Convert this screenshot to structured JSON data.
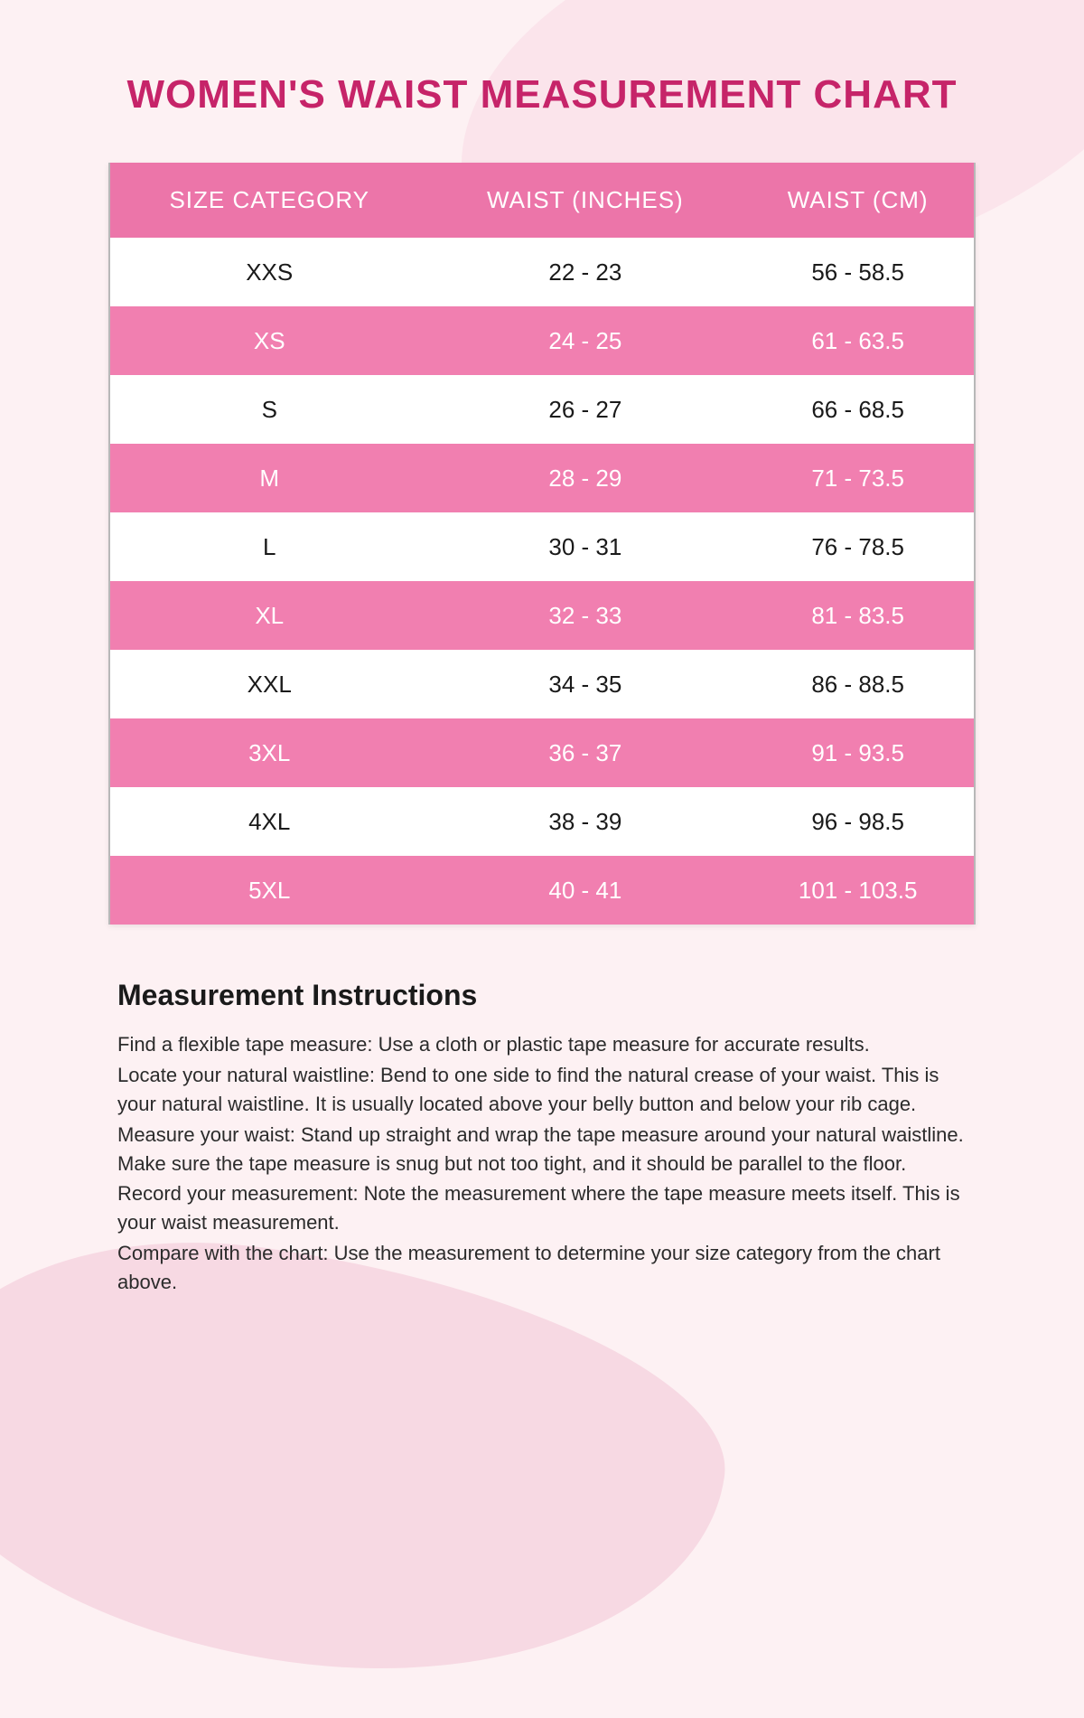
{
  "title": "WOMEN'S WAIST MEASUREMENT CHART",
  "colors": {
    "title": "#c62469",
    "header_bg": "#ec75a9",
    "row_odd_bg": "#ffffff",
    "row_even_bg": "#f17fb0",
    "row_odd_text": "#1a1a1a",
    "row_even_text": "#ffffff",
    "page_bg": "#fdf1f3",
    "shape_top": "#fbe4eb",
    "shape_bottom": "#f7d9e3",
    "border": "#b8b8b8"
  },
  "table": {
    "columns": [
      "SIZE CATEGORY",
      "WAIST (INCHES)",
      "WAIST (CM)"
    ],
    "rows": [
      [
        "XXS",
        "22 - 23",
        "56 - 58.5"
      ],
      [
        "XS",
        "24 - 25",
        "61 - 63.5"
      ],
      [
        "S",
        "26 - 27",
        "66 - 68.5"
      ],
      [
        "M",
        "28 - 29",
        "71 - 73.5"
      ],
      [
        "L",
        "30 - 31",
        "76 - 78.5"
      ],
      [
        "XL",
        "32 - 33",
        "81 - 83.5"
      ],
      [
        "XXL",
        "34 - 35",
        "86 - 88.5"
      ],
      [
        "3XL",
        "36 - 37",
        "91 - 93.5"
      ],
      [
        "4XL",
        "38 - 39",
        "96 - 98.5"
      ],
      [
        "5XL",
        "40 - 41",
        "101 - 103.5"
      ]
    ]
  },
  "instructions": {
    "heading": "Measurement Instructions",
    "lines": [
      "Find a flexible tape measure: Use a cloth or plastic tape measure for accurate results.",
      "Locate your natural waistline: Bend to one side to find the natural crease of your waist. This is your natural waistline. It is usually located above your belly button and below your rib cage.",
      "Measure your waist: Stand up straight and wrap the tape measure around your natural waistline. Make sure the tape measure is snug but not too tight, and it should be parallel to the floor.",
      "Record your measurement: Note the measurement where the tape measure meets itself. This is your waist measurement.",
      "Compare with the chart: Use the measurement to determine your size category from the chart above."
    ]
  }
}
